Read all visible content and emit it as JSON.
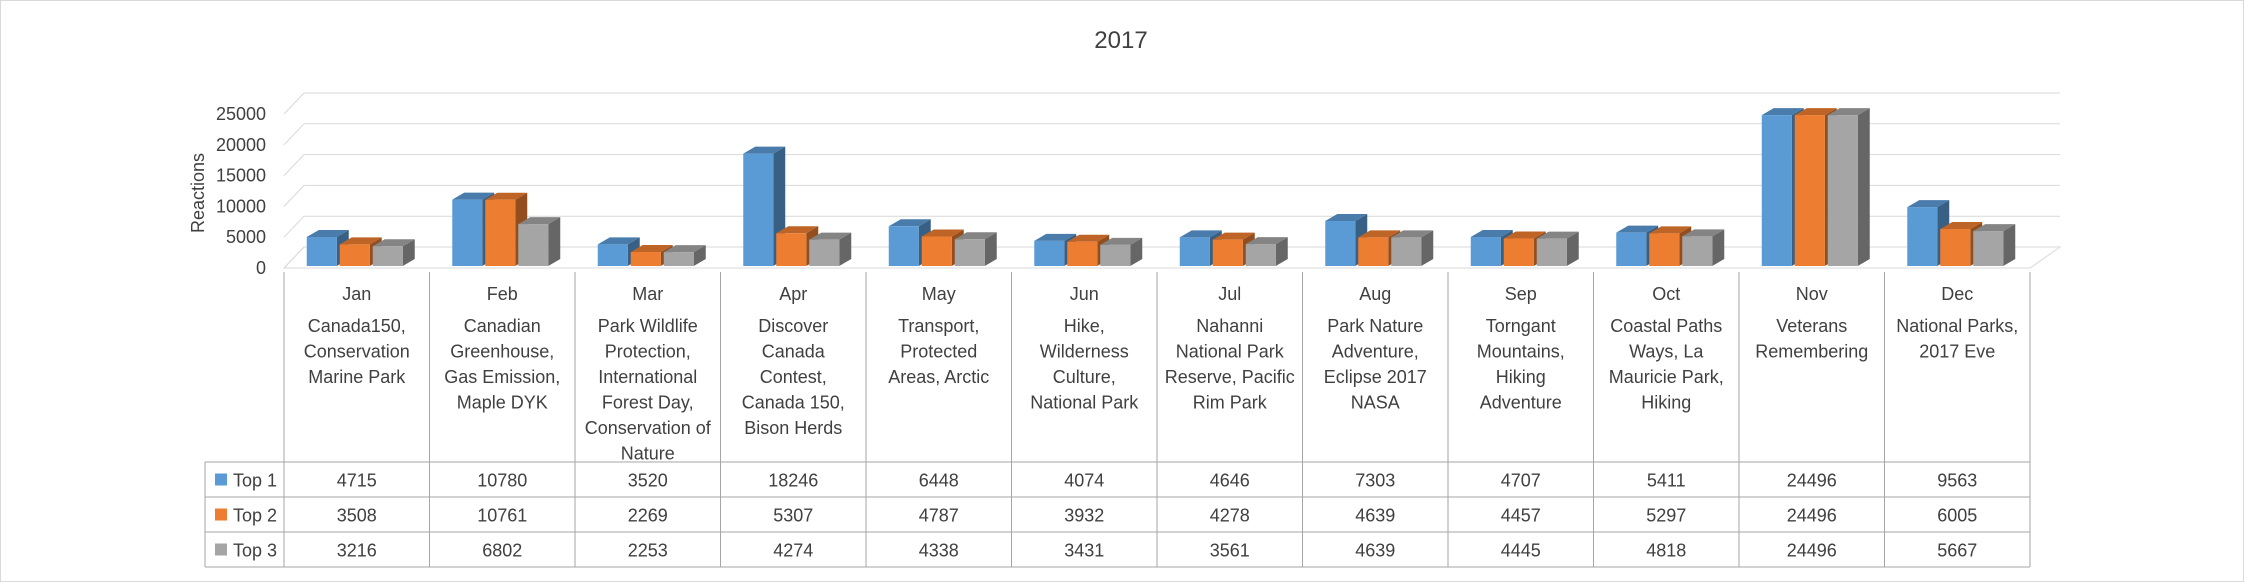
{
  "chart_data": {
    "type": "bar",
    "title": "2017",
    "ylabel": "Reactions",
    "ylim": [
      0,
      25000
    ],
    "yticks": [
      0,
      5000,
      10000,
      15000,
      20000,
      25000
    ],
    "grid": true,
    "legend": "data-table",
    "categories": [
      "Jan",
      "Feb",
      "Mar",
      "Apr",
      "May",
      "Jun",
      "Jul",
      "Aug",
      "Sep",
      "Oct",
      "Nov",
      "Dec"
    ],
    "topics": [
      [
        "Canada150,",
        "Conservation",
        "Marine Park"
      ],
      [
        "Canadian",
        "Greenhouse,",
        "Gas Emission,",
        "Maple DYK"
      ],
      [
        "Park Wildlife",
        "Protection,",
        "International",
        "Forest Day,",
        "Conservation of",
        "Nature"
      ],
      [
        "Discover",
        "Canada",
        "Contest,",
        "Canada 150,",
        "Bison Herds"
      ],
      [
        "Transport,",
        "Protected",
        "Areas, Arctic"
      ],
      [
        "Hike,",
        "Wilderness",
        "Culture,",
        "National Park"
      ],
      [
        "Nahanni",
        "National Park",
        "Reserve,  Pacific",
        "Rim Park"
      ],
      [
        "Park Nature",
        "Adventure,",
        "Eclipse 2017",
        "NASA"
      ],
      [
        "Torngant",
        "Mountains,",
        "Hiking",
        "Adventure"
      ],
      [
        "Coastal Paths",
        "Ways, La",
        "Mauricie Park,",
        "Hiking"
      ],
      [
        "Veterans",
        "Remembering"
      ],
      [
        "National Parks,",
        "2017 Eve"
      ]
    ],
    "series": [
      {
        "name": "Top 1",
        "color": "#5B9BD5",
        "values": [
          4715,
          10780,
          3520,
          18246,
          6448,
          4074,
          4646,
          7303,
          4707,
          5411,
          24496,
          9563
        ]
      },
      {
        "name": "Top 2",
        "color": "#ED7D31",
        "values": [
          3508,
          10761,
          2269,
          5307,
          4787,
          3932,
          4278,
          4639,
          4457,
          5297,
          24496,
          6005
        ]
      },
      {
        "name": "Top 3",
        "color": "#A5A5A5",
        "values": [
          3216,
          6802,
          2253,
          4274,
          4338,
          3431,
          3561,
          4639,
          4445,
          4818,
          24496,
          5667
        ]
      }
    ]
  }
}
